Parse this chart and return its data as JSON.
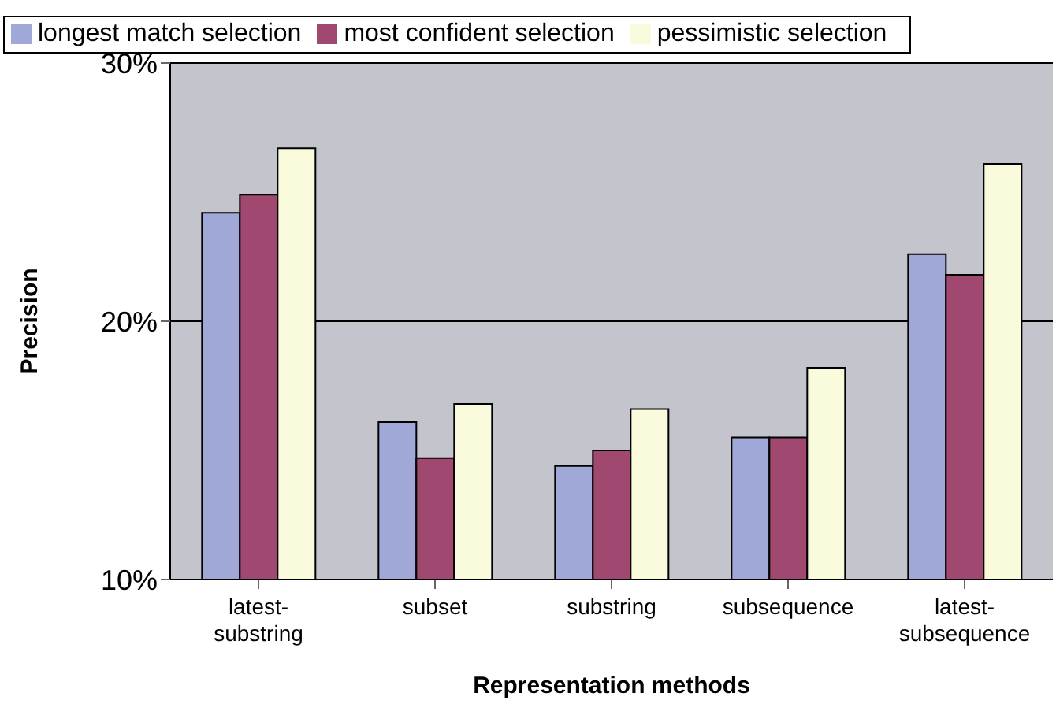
{
  "chart_data": {
    "type": "bar",
    "xlabel": "Representation methods",
    "ylabel": "Precision",
    "categories": [
      "latest-substring",
      "subset",
      "substring",
      "subsequence",
      "latest-subsequence"
    ],
    "series": [
      {
        "name": "longest match selection",
        "color": "#a0a8d8",
        "values": [
          24.2,
          16.1,
          14.4,
          15.5,
          22.6
        ]
      },
      {
        "name": "most confident selection",
        "color": "#a04870",
        "values": [
          24.9,
          14.7,
          15.0,
          15.5,
          21.8
        ]
      },
      {
        "name": "pessimistic selection",
        "color": "#fafadc",
        "values": [
          26.7,
          16.8,
          16.6,
          18.2,
          26.1
        ]
      }
    ],
    "ylim": [
      10,
      30
    ],
    "yticks": [
      {
        "value": 10,
        "label": "10%"
      },
      {
        "value": 20,
        "label": "20%"
      },
      {
        "value": 30,
        "label": "30%"
      }
    ],
    "grid": "y",
    "legend": "top"
  }
}
